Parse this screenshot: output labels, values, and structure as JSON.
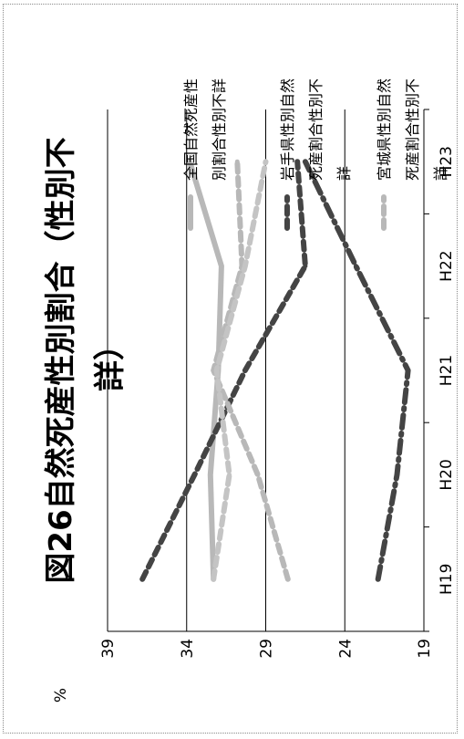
{
  "chart_data": {
    "type": "line",
    "title": "図26自然死産性別割合（性別不詳）",
    "title_lines": [
      "図26自然死産性別割合（性別不",
      "詳）"
    ],
    "ylabel": "%",
    "xlabel": "",
    "categories": [
      "H19",
      "H20",
      "H21",
      "H22",
      "H23"
    ],
    "ylim": [
      19,
      39
    ],
    "yticks": [
      19,
      24,
      29,
      34,
      39
    ],
    "grid": true,
    "legend_position": "right",
    "series": [
      {
        "name": "全国自然死産性別割合性別不詳",
        "name_lines": [
          "全国自然死産性",
          "別割合性別不詳"
        ],
        "values": [
          32.3,
          32.5,
          32.0,
          31.8,
          33.8
        ],
        "color": "#b8b8b8",
        "style": "solid"
      },
      {
        "name": "岩手県性別自然死産割合性別不詳",
        "name_lines": [
          "岩手県性別自然",
          "死産割合性別不",
          "詳"
        ],
        "values": [
          36.8,
          33.5,
          30.3,
          26.5,
          27.0
        ],
        "color": "#444444",
        "style": "dashed"
      },
      {
        "name": "宮城県性別自然死産割合性別不詳",
        "name_lines": [
          "宮城県性別自然",
          "死産割合性別不",
          "詳"
        ],
        "values": [
          27.6,
          29.5,
          32.3,
          30.5,
          30.8
        ],
        "color": "#b8b8b8",
        "style": "dashed"
      },
      {
        "name": "",
        "name_lines": [],
        "values": [
          21.9,
          20.7,
          20.0,
          23.3,
          26.5
        ],
        "color": "#444444",
        "style": "dashdot"
      },
      {
        "name": "",
        "name_lines": [],
        "values": [
          32.3,
          31.3,
          32.1,
          30.3,
          29.0
        ],
        "color": "#c4c4c4",
        "style": "dashed"
      }
    ]
  }
}
